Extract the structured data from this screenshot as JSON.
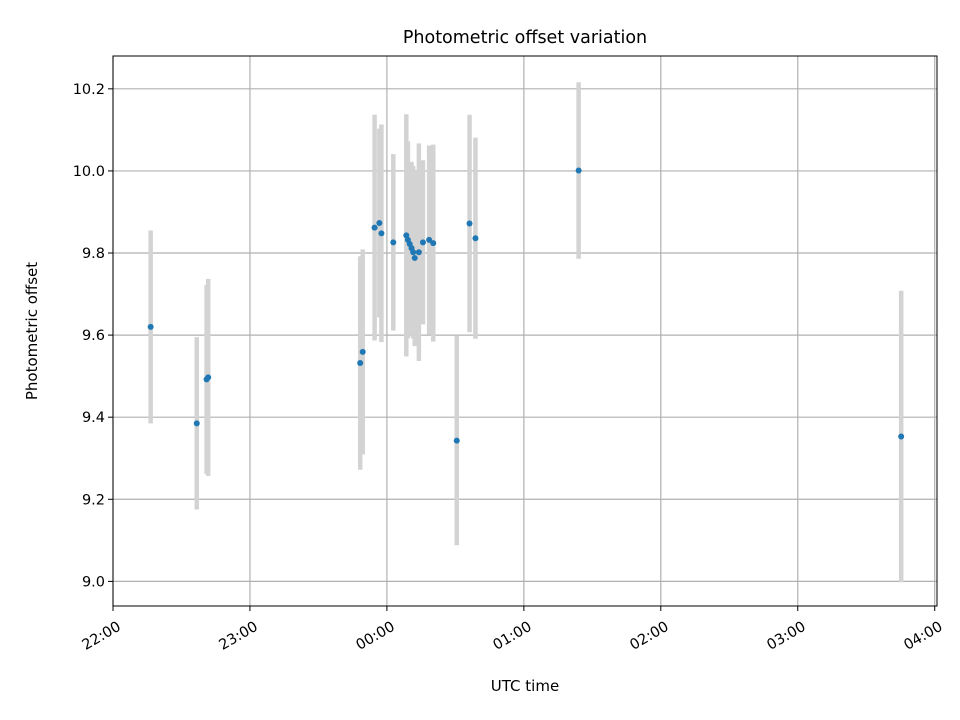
{
  "chart_data": {
    "type": "scatter",
    "title": "Photometric offset variation",
    "xlabel": "UTC time",
    "ylabel": "Photometric offset",
    "x_unit": "minutes after 22:00",
    "xlim": [
      0,
      361
    ],
    "ylim": [
      8.94,
      10.28
    ],
    "x_ticks": [
      {
        "value": 0,
        "label": "22:00"
      },
      {
        "value": 60,
        "label": "23:00"
      },
      {
        "value": 120,
        "label": "00:00"
      },
      {
        "value": 180,
        "label": "01:00"
      },
      {
        "value": 240,
        "label": "02:00"
      },
      {
        "value": 300,
        "label": "03:00"
      },
      {
        "value": 360,
        "label": "04:00"
      }
    ],
    "y_ticks": [
      {
        "value": 9.0,
        "label": "9.0"
      },
      {
        "value": 9.2,
        "label": "9.2"
      },
      {
        "value": 9.4,
        "label": "9.4"
      },
      {
        "value": 9.6,
        "label": "9.6"
      },
      {
        "value": 9.8,
        "label": "9.8"
      },
      {
        "value": 10.0,
        "label": "10.0"
      },
      {
        "value": 10.2,
        "label": "10.2"
      }
    ],
    "grid": true,
    "point_color": "#1f77b4",
    "errorbar_color": "#d3d3d3",
    "points": [
      {
        "x": 16.5,
        "y": 9.62,
        "err": 0.235
      },
      {
        "x": 36.7,
        "y": 9.385,
        "err": 0.21
      },
      {
        "x": 41.0,
        "y": 9.492,
        "err": 0.23
      },
      {
        "x": 41.7,
        "y": 9.497,
        "err": 0.24
      },
      {
        "x": 108.3,
        "y": 9.532,
        "err": 0.26
      },
      {
        "x": 109.4,
        "y": 9.559,
        "err": 0.25
      },
      {
        "x": 114.6,
        "y": 9.862,
        "err": 0.275
      },
      {
        "x": 116.7,
        "y": 9.873,
        "err": 0.23
      },
      {
        "x": 117.6,
        "y": 9.848,
        "err": 0.265
      },
      {
        "x": 122.8,
        "y": 9.826,
        "err": 0.215
      },
      {
        "x": 128.5,
        "y": 9.843,
        "err": 0.295
      },
      {
        "x": 129.2,
        "y": 9.832,
        "err": 0.24
      },
      {
        "x": 130.0,
        "y": 9.822,
        "err": 0.2
      },
      {
        "x": 130.8,
        "y": 9.812,
        "err": 0.21
      },
      {
        "x": 131.5,
        "y": 9.802,
        "err": 0.21
      },
      {
        "x": 132.2,
        "y": 9.788,
        "err": 0.215
      },
      {
        "x": 134.0,
        "y": 9.802,
        "err": 0.265
      },
      {
        "x": 135.8,
        "y": 9.826,
        "err": 0.2
      },
      {
        "x": 138.5,
        "y": 9.832,
        "err": 0.23
      },
      {
        "x": 140.3,
        "y": 9.824,
        "err": 0.24
      },
      {
        "x": 150.6,
        "y": 9.343,
        "err": 0.255
      },
      {
        "x": 156.2,
        "y": 9.872,
        "err": 0.265
      },
      {
        "x": 158.8,
        "y": 9.836,
        "err": 0.245
      },
      {
        "x": 204.0,
        "y": 10.001,
        "err": 0.215
      },
      {
        "x": 345.3,
        "y": 9.353,
        "err": 0.355
      }
    ]
  }
}
